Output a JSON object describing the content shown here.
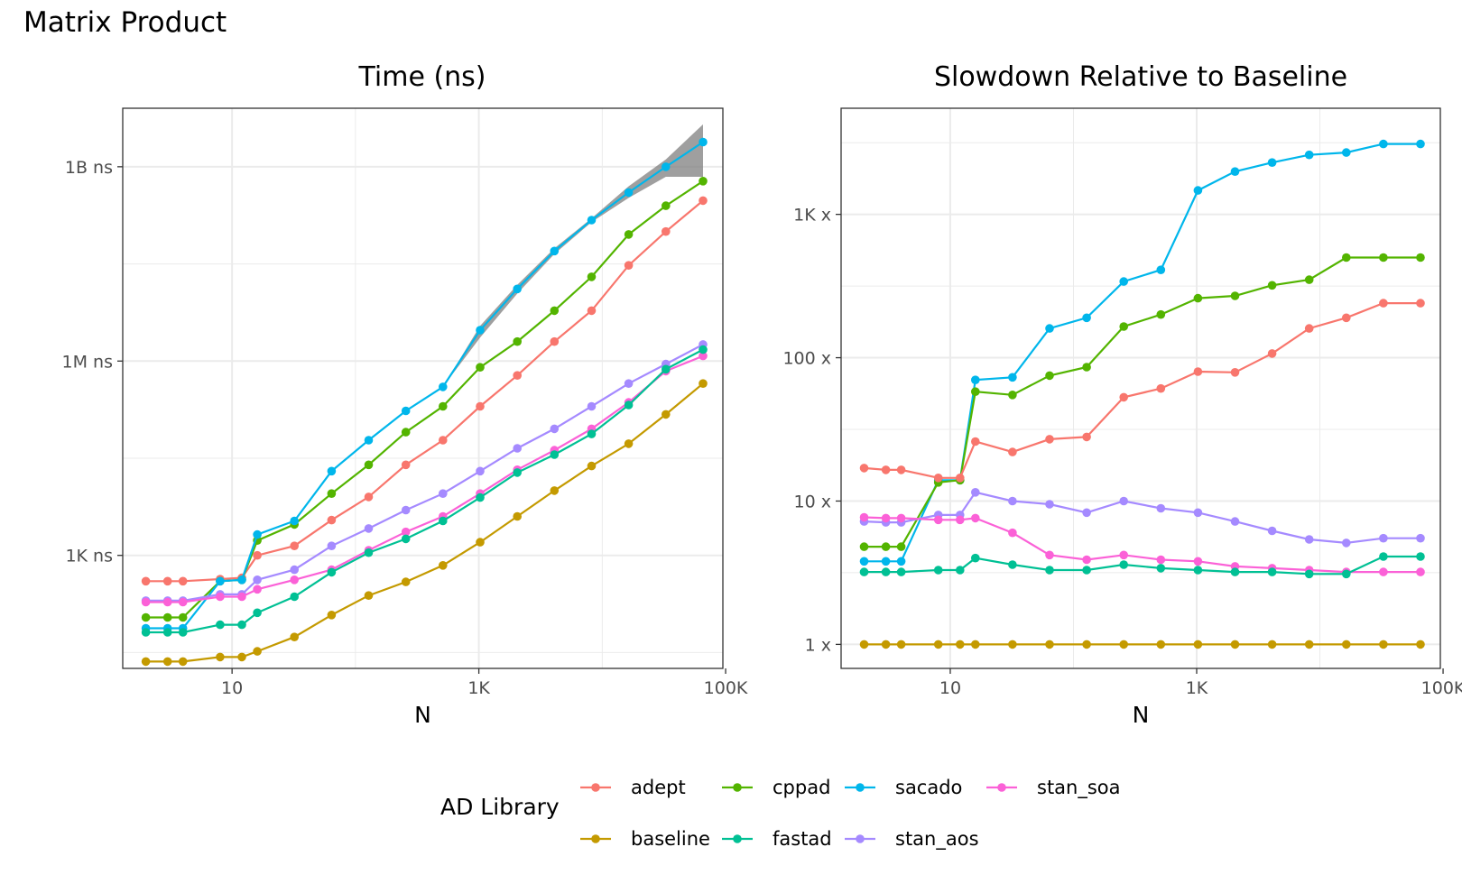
{
  "title": "Matrix Product",
  "legend": {
    "title": "AD Library"
  },
  "colors": {
    "adept": "#F8766D",
    "baseline": "#C49A00",
    "cppad": "#53B400",
    "fastad": "#00C094",
    "sacado": "#00B6EB",
    "stan_aos": "#A58AFF",
    "stan_soa": "#FB61D7",
    "ribbon": "#7f7f7f"
  },
  "chart_data": [
    {
      "type": "line",
      "title": "Time (ns)",
      "xlabel": "N",
      "ylabel": "",
      "x_scale": "log10",
      "y_scale": "log10",
      "xlim": [
        1.3,
        95000
      ],
      "ylim": [
        18,
        8000000000
      ],
      "x_ticks": [
        {
          "v": 10,
          "label": "10"
        },
        {
          "v": 1000,
          "label": "1K"
        },
        {
          "v": 100000,
          "label": "100K"
        }
      ],
      "y_ticks": [
        {
          "v": 1000,
          "label": "1K ns"
        },
        {
          "v": 1000000,
          "label": "1M ns"
        },
        {
          "v": 1000000000,
          "label": "1B ns"
        }
      ],
      "grid": true,
      "x": [
        2,
        3,
        4,
        8,
        12,
        16,
        32,
        64,
        128,
        256,
        512,
        1024,
        2048,
        4096,
        8192,
        16384,
        32768,
        65536
      ],
      "series": [
        {
          "name": "adept",
          "values": [
            400,
            400,
            400,
            430,
            450,
            1000,
            1400,
            3500,
            8000,
            25000,
            60000,
            200000,
            600000,
            2000000,
            6000000,
            30000000,
            100000000,
            300000000
          ]
        },
        {
          "name": "cppad",
          "values": [
            110,
            110,
            110,
            400,
            420,
            1700,
            3000,
            9000,
            25000,
            80000,
            200000,
            800000,
            2000000,
            6000000,
            20000000,
            90000000,
            250000000,
            600000000
          ]
        },
        {
          "name": "sacado",
          "values": [
            75,
            75,
            75,
            400,
            420,
            2100,
            3400,
            20000,
            60000,
            170000,
            400000,
            3000000,
            13000000,
            50000000,
            150000000,
            400000000,
            1000000000,
            2400000000
          ]
        },
        {
          "name": "stan_aos",
          "values": [
            200,
            200,
            200,
            250,
            250,
            420,
            600,
            1400,
            2600,
            5000,
            9000,
            20000,
            45000,
            90000,
            200000,
            450000,
            900000,
            1800000
          ]
        },
        {
          "name": "stan_soa",
          "values": [
            190,
            190,
            190,
            230,
            230,
            300,
            420,
            600,
            1200,
            2300,
            4000,
            9000,
            21000,
            42000,
            90000,
            230000,
            700000,
            1200000
          ]
        },
        {
          "name": "fastad",
          "values": [
            65,
            65,
            65,
            85,
            85,
            130,
            230,
            550,
            1100,
            1800,
            3400,
            7800,
            19000,
            36000,
            75000,
            210000,
            750000,
            1500000
          ]
        },
        {
          "name": "baseline",
          "values": [
            23,
            23,
            23,
            27,
            27,
            33,
            55,
            120,
            240,
            390,
            700,
            1600,
            4000,
            10000,
            24000,
            53000,
            150000,
            450000
          ]
        }
      ],
      "ribbon": {
        "x": [
          256,
          512,
          1024,
          2048,
          4096,
          8192,
          16384,
          32768,
          65536
        ],
        "series": "sacado",
        "upper": [
          170000,
          400000,
          3500000,
          15000000,
          55000000,
          160000000,
          500000000,
          1300000000,
          4500000000
        ],
        "lower": [
          170000,
          400000,
          2300000,
          11000000,
          45000000,
          140000000,
          330000000,
          700000000,
          700000000
        ]
      }
    },
    {
      "type": "line",
      "title": "Slowdown Relative to Baseline",
      "xlabel": "N",
      "ylabel": "",
      "x_scale": "log10",
      "y_scale": "log10",
      "xlim": [
        1.3,
        95000
      ],
      "ylim": [
        0.68,
        5500
      ],
      "x_ticks": [
        {
          "v": 10,
          "label": "10"
        },
        {
          "v": 1000,
          "label": "1K"
        },
        {
          "v": 100000,
          "label": "100K"
        }
      ],
      "y_ticks": [
        {
          "v": 1,
          "label": "1 x"
        },
        {
          "v": 10,
          "label": "10 x"
        },
        {
          "v": 100,
          "label": "100 x"
        },
        {
          "v": 1000,
          "label": "1K x"
        }
      ],
      "grid": true,
      "x": [
        2,
        3,
        4,
        8,
        12,
        16,
        32,
        64,
        128,
        256,
        512,
        1024,
        2048,
        4096,
        8192,
        16384,
        32768,
        65536
      ],
      "series": [
        {
          "name": "sacado",
          "values": [
            3.8,
            3.8,
            3.8,
            14,
            14,
            70,
            73,
            160,
            190,
            340,
            410,
            1470,
            1990,
            2300,
            2600,
            2700,
            3100,
            3100
          ]
        },
        {
          "name": "cppad",
          "values": [
            4.8,
            4.8,
            4.8,
            13.5,
            14,
            58,
            55,
            75,
            86,
            165,
            200,
            260,
            270,
            320,
            350,
            500,
            500,
            500
          ]
        },
        {
          "name": "adept",
          "values": [
            17,
            16.5,
            16.5,
            14.5,
            14.5,
            26,
            22,
            27,
            28,
            53,
            61,
            80,
            79,
            107,
            160,
            190,
            240,
            240
          ]
        },
        {
          "name": "stan_aos",
          "values": [
            7.2,
            7.1,
            7.1,
            8,
            8,
            11.5,
            10,
            9.5,
            8.3,
            10,
            8.9,
            8.3,
            7.2,
            6.2,
            5.4,
            5.1,
            5.5,
            5.5
          ]
        },
        {
          "name": "stan_soa",
          "values": [
            7.7,
            7.6,
            7.6,
            7.4,
            7.4,
            7.6,
            6,
            4.2,
            3.9,
            4.2,
            3.9,
            3.8,
            3.5,
            3.4,
            3.3,
            3.2,
            3.2,
            3.2
          ]
        },
        {
          "name": "fastad",
          "values": [
            3.2,
            3.2,
            3.2,
            3.3,
            3.3,
            4,
            3.6,
            3.3,
            3.3,
            3.6,
            3.4,
            3.3,
            3.2,
            3.2,
            3.1,
            3.1,
            4.1,
            4.1
          ]
        },
        {
          "name": "baseline",
          "values": [
            1,
            1,
            1,
            1,
            1,
            1,
            1,
            1,
            1,
            1,
            1,
            1,
            1,
            1,
            1,
            1,
            1,
            1
          ]
        }
      ]
    }
  ],
  "legend_items": [
    "adept",
    "baseline",
    "cppad",
    "fastad",
    "sacado",
    "stan_aos",
    "stan_soa"
  ]
}
